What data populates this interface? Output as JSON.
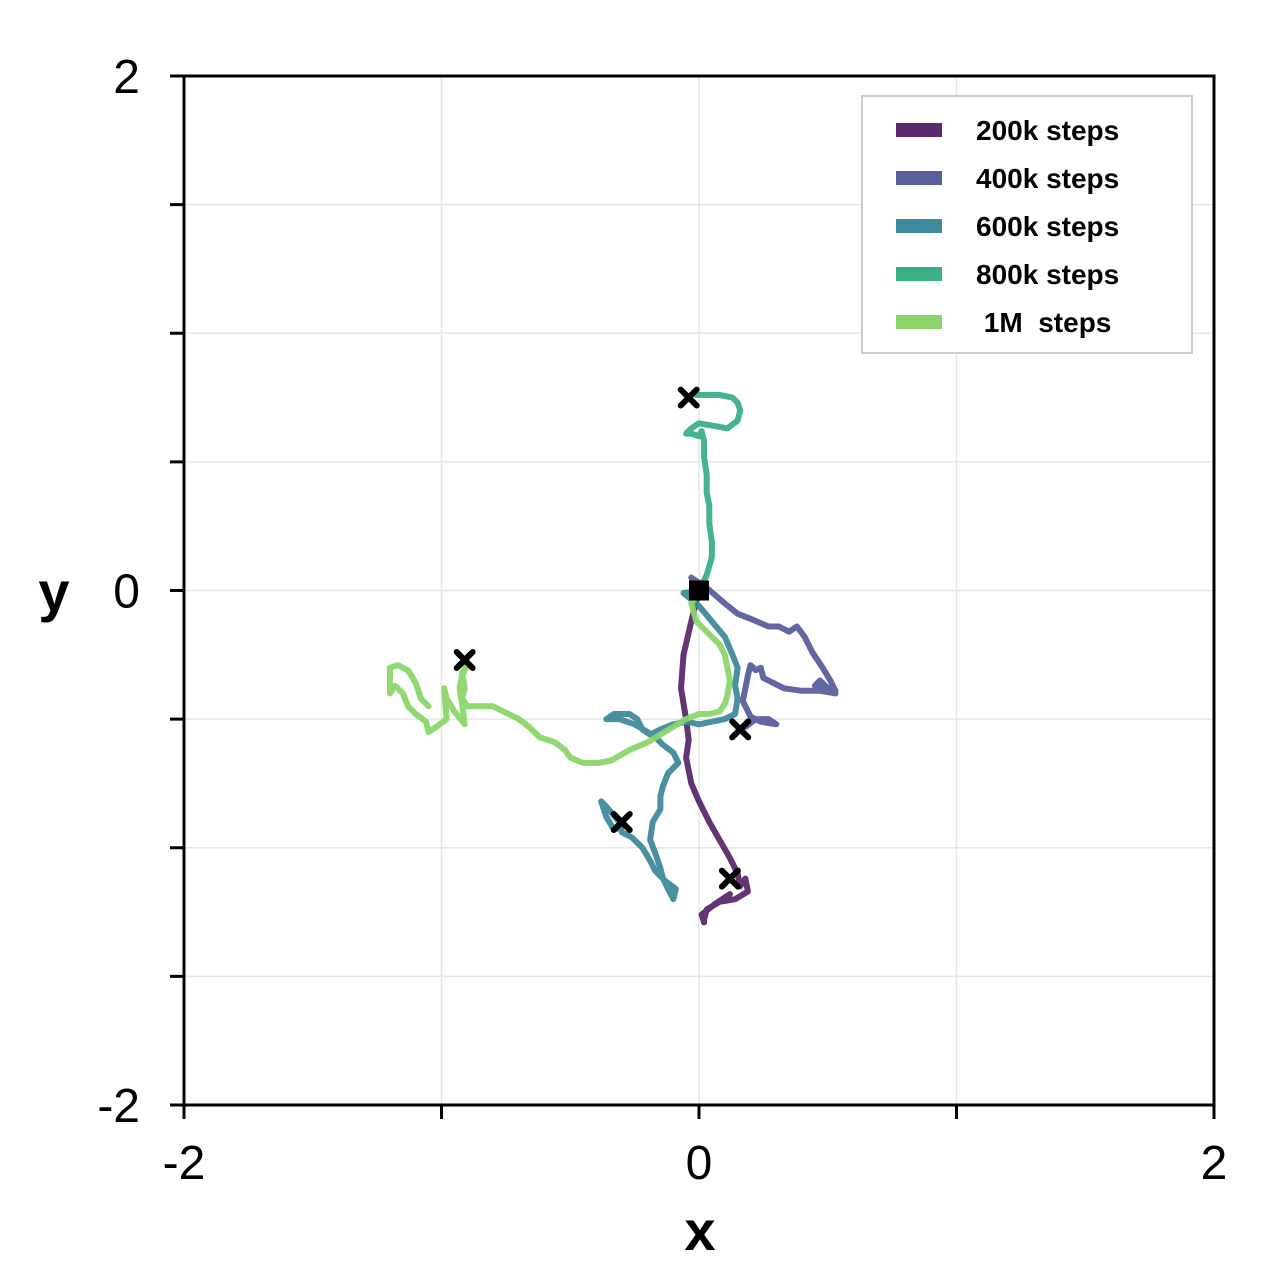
{
  "chart_data": {
    "type": "line",
    "xlabel": "x",
    "ylabel": "y",
    "xlim": [
      -2,
      2
    ],
    "ylim": [
      -2,
      2
    ],
    "x_tick_values": [
      -2,
      -1,
      0,
      1,
      2
    ],
    "x_tick_labels": [
      "-2",
      "",
      "0",
      "",
      "2"
    ],
    "y_tick_values": [
      -2,
      -1.5,
      -1,
      -0.5,
      0,
      0.5,
      1,
      1.5,
      2
    ],
    "y_tick_labels": [
      "-2",
      "",
      "",
      "",
      "0",
      "",
      "",
      "",
      "2"
    ],
    "grid": true,
    "legend_position": "top-right",
    "start_point": {
      "x": 0,
      "y": 0,
      "marker": "square"
    },
    "series": [
      {
        "name": "200k steps",
        "color": "#5b2a6e",
        "points": [
          [
            0,
            0
          ],
          [
            -0.03,
            -0.12
          ],
          [
            -0.06,
            -0.25
          ],
          [
            -0.07,
            -0.38
          ],
          [
            -0.05,
            -0.5
          ],
          [
            -0.04,
            -0.58
          ],
          [
            -0.05,
            -0.65
          ],
          [
            -0.03,
            -0.75
          ],
          [
            0.0,
            -0.82
          ],
          [
            0.04,
            -0.9
          ],
          [
            0.08,
            -0.97
          ],
          [
            0.12,
            -1.04
          ],
          [
            0.15,
            -1.1
          ],
          [
            0.16,
            -1.15
          ],
          [
            0.18,
            -1.12
          ],
          [
            0.19,
            -1.17
          ],
          [
            0.14,
            -1.2
          ],
          [
            0.08,
            -1.21
          ],
          [
            0.03,
            -1.24
          ],
          [
            0.02,
            -1.28
          ],
          [
            0.02,
            -1.29
          ],
          [
            0.01,
            -1.26
          ],
          [
            0.06,
            -1.22
          ],
          [
            0.12,
            -1.18
          ]
        ],
        "end": [
          0.12,
          -1.12
        ]
      },
      {
        "name": "400k steps",
        "color": "#5a5f9c",
        "points": [
          [
            0,
            0
          ],
          [
            -0.03,
            0.05
          ],
          [
            0.03,
            0.01
          ],
          [
            0.1,
            -0.05
          ],
          [
            0.15,
            -0.09
          ],
          [
            0.2,
            -0.11
          ],
          [
            0.27,
            -0.14
          ],
          [
            0.31,
            -0.14
          ],
          [
            0.35,
            -0.16
          ],
          [
            0.38,
            -0.14
          ],
          [
            0.41,
            -0.18
          ],
          [
            0.44,
            -0.24
          ],
          [
            0.48,
            -0.3
          ],
          [
            0.51,
            -0.35
          ],
          [
            0.53,
            -0.39
          ],
          [
            0.5,
            -0.38
          ],
          [
            0.47,
            -0.35
          ],
          [
            0.45,
            -0.37
          ],
          [
            0.53,
            -0.4
          ],
          [
            0.47,
            -0.39
          ],
          [
            0.4,
            -0.39
          ],
          [
            0.33,
            -0.38
          ],
          [
            0.25,
            -0.34
          ],
          [
            0.24,
            -0.3
          ],
          [
            0.22,
            -0.31
          ],
          [
            0.2,
            -0.29
          ],
          [
            0.19,
            -0.33
          ],
          [
            0.18,
            -0.38
          ],
          [
            0.17,
            -0.43
          ],
          [
            0.2,
            -0.49
          ],
          [
            0.24,
            -0.51
          ],
          [
            0.3,
            -0.52
          ],
          [
            0.27,
            -0.5
          ],
          [
            0.22,
            -0.5
          ],
          [
            0.18,
            -0.53
          ]
        ],
        "end": [
          0.16,
          -0.54
        ]
      },
      {
        "name": "600k steps",
        "color": "#3f8a9c",
        "points": [
          [
            0,
            0
          ],
          [
            -0.06,
            -0.01
          ],
          [
            0.0,
            -0.06
          ],
          [
            0.05,
            -0.12
          ],
          [
            0.1,
            -0.18
          ],
          [
            0.13,
            -0.25
          ],
          [
            0.15,
            -0.3
          ],
          [
            0.14,
            -0.37
          ],
          [
            0.15,
            -0.42
          ],
          [
            0.14,
            -0.48
          ],
          [
            0.1,
            -0.5
          ],
          [
            0.05,
            -0.51
          ],
          [
            0.0,
            -0.52
          ],
          [
            -0.05,
            -0.51
          ],
          [
            -0.1,
            -0.52
          ],
          [
            -0.15,
            -0.54
          ],
          [
            -0.19,
            -0.56
          ],
          [
            -0.22,
            -0.54
          ],
          [
            -0.24,
            -0.5
          ],
          [
            -0.27,
            -0.48
          ],
          [
            -0.33,
            -0.48
          ],
          [
            -0.36,
            -0.5
          ],
          [
            -0.31,
            -0.5
          ],
          [
            -0.25,
            -0.52
          ],
          [
            -0.2,
            -0.55
          ],
          [
            -0.17,
            -0.57
          ],
          [
            -0.14,
            -0.6
          ],
          [
            -0.1,
            -0.63
          ],
          [
            -0.08,
            -0.67
          ],
          [
            -0.12,
            -0.71
          ],
          [
            -0.14,
            -0.76
          ],
          [
            -0.15,
            -0.8
          ],
          [
            -0.15,
            -0.85
          ],
          [
            -0.18,
            -0.9
          ],
          [
            -0.19,
            -0.97
          ],
          [
            -0.17,
            -1.02
          ],
          [
            -0.15,
            -1.08
          ],
          [
            -0.14,
            -1.12
          ],
          [
            -0.12,
            -1.16
          ],
          [
            -0.1,
            -1.2
          ],
          [
            -0.09,
            -1.16
          ],
          [
            -0.13,
            -1.13
          ],
          [
            -0.17,
            -1.09
          ],
          [
            -0.19,
            -1.05
          ],
          [
            -0.22,
            -1.0
          ],
          [
            -0.26,
            -0.96
          ],
          [
            -0.3,
            -0.94
          ],
          [
            -0.31,
            -0.9
          ],
          [
            -0.36,
            -0.84
          ],
          [
            -0.38,
            -0.82
          ],
          [
            -0.36,
            -0.88
          ],
          [
            -0.33,
            -0.93
          ],
          [
            -0.3,
            -0.92
          ]
        ],
        "end": [
          -0.3,
          -0.9
        ]
      },
      {
        "name": "800k steps",
        "color": "#3bb084",
        "points": [
          [
            0,
            0
          ],
          [
            0.03,
            0.06
          ],
          [
            0.05,
            0.13
          ],
          [
            0.05,
            0.19
          ],
          [
            0.04,
            0.26
          ],
          [
            0.04,
            0.33
          ],
          [
            0.03,
            0.38
          ],
          [
            0.03,
            0.45
          ],
          [
            0.02,
            0.52
          ],
          [
            0.02,
            0.58
          ],
          [
            0.01,
            0.62
          ],
          [
            0.0,
            0.6
          ],
          [
            -0.03,
            0.61
          ],
          [
            -0.05,
            0.61
          ],
          [
            -0.03,
            0.63
          ],
          [
            0.0,
            0.65
          ],
          [
            0.06,
            0.64
          ],
          [
            0.11,
            0.63
          ],
          [
            0.15,
            0.66
          ],
          [
            0.16,
            0.7
          ],
          [
            0.15,
            0.73
          ],
          [
            0.13,
            0.75
          ],
          [
            0.08,
            0.76
          ],
          [
            0.03,
            0.76
          ],
          [
            -0.01,
            0.76
          ]
        ],
        "end": [
          -0.04,
          0.75
        ]
      },
      {
        "name": " 1M  steps",
        "color": "#8bd56a",
        "points": [
          [
            0,
            0
          ],
          [
            -0.03,
            -0.05
          ],
          [
            -0.01,
            -0.12
          ],
          [
            0.04,
            -0.17
          ],
          [
            0.08,
            -0.21
          ],
          [
            0.1,
            -0.25
          ],
          [
            0.11,
            -0.3
          ],
          [
            0.12,
            -0.35
          ],
          [
            0.11,
            -0.41
          ],
          [
            0.1,
            -0.44
          ],
          [
            0.08,
            -0.47
          ],
          [
            0.04,
            -0.48
          ],
          [
            0.0,
            -0.48
          ],
          [
            -0.05,
            -0.5
          ],
          [
            -0.1,
            -0.53
          ],
          [
            -0.15,
            -0.56
          ],
          [
            -0.2,
            -0.59
          ],
          [
            -0.27,
            -0.62
          ],
          [
            -0.34,
            -0.66
          ],
          [
            -0.39,
            -0.67
          ],
          [
            -0.45,
            -0.67
          ],
          [
            -0.5,
            -0.65
          ],
          [
            -0.52,
            -0.62
          ],
          [
            -0.56,
            -0.59
          ],
          [
            -0.62,
            -0.57
          ],
          [
            -0.66,
            -0.53
          ],
          [
            -0.7,
            -0.5
          ],
          [
            -0.76,
            -0.47
          ],
          [
            -0.8,
            -0.45
          ],
          [
            -0.86,
            -0.45
          ],
          [
            -0.9,
            -0.45
          ],
          [
            -0.92,
            -0.42
          ],
          [
            -0.91,
            -0.38
          ],
          [
            -0.92,
            -0.32
          ],
          [
            -0.9,
            -0.29
          ],
          [
            -0.92,
            -0.33
          ],
          [
            -0.93,
            -0.38
          ],
          [
            -0.92,
            -0.44
          ],
          [
            -0.91,
            -0.52
          ],
          [
            -0.95,
            -0.47
          ],
          [
            -0.98,
            -0.42
          ],
          [
            -0.99,
            -0.38
          ],
          [
            -0.98,
            -0.5
          ],
          [
            -1.02,
            -0.53
          ],
          [
            -1.05,
            -0.55
          ],
          [
            -1.06,
            -0.51
          ],
          [
            -1.1,
            -0.48
          ],
          [
            -1.13,
            -0.45
          ],
          [
            -1.15,
            -0.4
          ],
          [
            -1.18,
            -0.37
          ],
          [
            -1.2,
            -0.4
          ],
          [
            -1.2,
            -0.3
          ],
          [
            -1.17,
            -0.29
          ],
          [
            -1.13,
            -0.31
          ],
          [
            -1.1,
            -0.36
          ],
          [
            -1.08,
            -0.42
          ],
          [
            -1.05,
            -0.45
          ]
        ],
        "end": [
          -0.91,
          -0.27
        ]
      }
    ]
  }
}
